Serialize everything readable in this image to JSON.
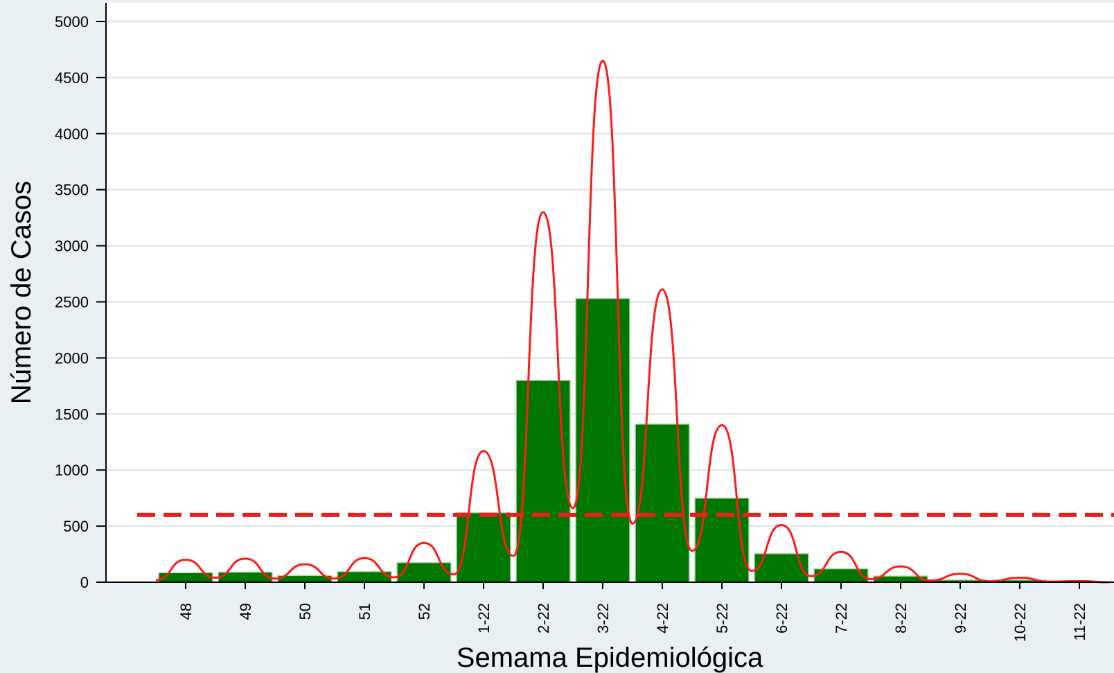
{
  "chart_data": {
    "type": "bar",
    "xlabel": "Semama Epidemiológica",
    "ylabel": "Número de Casos",
    "ylim": [
      0,
      5000
    ],
    "yticks": [
      0,
      500,
      1000,
      1500,
      2000,
      2500,
      3000,
      3500,
      4000,
      4500,
      5000
    ],
    "grid": true,
    "categories": [
      "48",
      "49",
      "50",
      "51",
      "52",
      "1-22",
      "2-22",
      "3-22",
      "4-22",
      "5-22",
      "6-22",
      "7-22",
      "8-22",
      "9-22",
      "10-22",
      "11-22"
    ],
    "series": [
      {
        "type": "bar",
        "values": [
          85,
          90,
          60,
          95,
          175,
          620,
          1800,
          2530,
          1410,
          750,
          255,
          120,
          55,
          20,
          20,
          5
        ]
      },
      {
        "type": "line",
        "values": [
          200,
          210,
          160,
          215,
          350,
          1170,
          3300,
          4650,
          2610,
          1400,
          510,
          270,
          140,
          75,
          40,
          10
        ]
      }
    ],
    "threshold": 600,
    "colors": {
      "bar": "#007700",
      "bar_edge": "#b3d6b3",
      "curve": "#ff1a1a",
      "threshold": "#ee1c1c",
      "grid": "#e3eaed",
      "axis": "#000000"
    }
  }
}
